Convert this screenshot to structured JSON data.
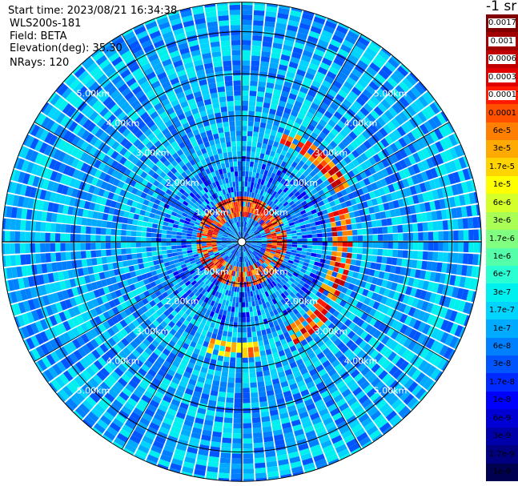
{
  "header": {
    "start_time": "Start time: 2023/08/21 16:34:38",
    "instrument": "WLS200s-181",
    "field": "Field: BETA",
    "elevation": "Elevation(deg): 35.30",
    "nrays": "NRays: 120"
  },
  "colorbar": {
    "units_label": "-1 sr",
    "cells": [
      {
        "label": "0.0017",
        "color": "#800000",
        "boxed": true
      },
      {
        "label": "0.001",
        "color": "#a00000",
        "boxed": true
      },
      {
        "label": "0.0006",
        "color": "#c00000",
        "boxed": true
      },
      {
        "label": "0.0003",
        "color": "#e00000",
        "boxed": true
      },
      {
        "label": "0.00017",
        "color": "#ff1a00",
        "boxed": true
      },
      {
        "label": "0.0001",
        "color": "#ff5000",
        "boxed": false
      },
      {
        "label": "6e-5",
        "color": "#ff8000",
        "boxed": false
      },
      {
        "label": "3e-5",
        "color": "#ffaa00",
        "boxed": false
      },
      {
        "label": "1.7e-5",
        "color": "#ffd400",
        "boxed": false
      },
      {
        "label": "1e-5",
        "color": "#ffff00",
        "boxed": false
      },
      {
        "label": "6e-6",
        "color": "#d4ff2a",
        "boxed": false
      },
      {
        "label": "3e-6",
        "color": "#aaff55",
        "boxed": false
      },
      {
        "label": "1.7e-6",
        "color": "#80ff80",
        "boxed": false
      },
      {
        "label": "1e-6",
        "color": "#55ffaa",
        "boxed": false
      },
      {
        "label": "6e-7",
        "color": "#2affd4",
        "boxed": false
      },
      {
        "label": "3e-7",
        "color": "#00f0f0",
        "boxed": false
      },
      {
        "label": "1.7e-7",
        "color": "#00d4ff",
        "boxed": false
      },
      {
        "label": "1e-7",
        "color": "#00aaff",
        "boxed": false
      },
      {
        "label": "6e-8",
        "color": "#0080ff",
        "boxed": false
      },
      {
        "label": "3e-8",
        "color": "#0055ff",
        "boxed": false
      },
      {
        "label": "1.7e-8",
        "color": "#002aff",
        "boxed": false
      },
      {
        "label": "1e-8",
        "color": "#0000ff",
        "boxed": false
      },
      {
        "label": "6e-9",
        "color": "#0000d4",
        "boxed": false
      },
      {
        "label": "3e-9",
        "color": "#0000aa",
        "boxed": false
      },
      {
        "label": "1.7e-9",
        "color": "#000080",
        "boxed": false
      },
      {
        "label": "1e-9",
        "color": "#000050",
        "boxed": false
      }
    ]
  },
  "chart_data": {
    "type": "heatmap",
    "projection": "polar PPI",
    "range_rings_km": [
      1,
      2,
      3,
      4,
      5
    ],
    "range_ring_labels": [
      "1.00km",
      "2.00km",
      "3.00km",
      "4.00km",
      "5.00km"
    ],
    "max_range_km": 5.7,
    "nrays": 120,
    "colorbar_labels": [
      "0.0017",
      "0.001",
      "0.0006",
      "0.0003",
      "0.00017",
      "0.0001",
      "6e-5",
      "3e-5",
      "1.7e-5",
      "1e-5",
      "6e-6",
      "3e-6",
      "1.7e-6",
      "1e-6",
      "6e-7",
      "3e-7",
      "1.7e-7",
      "1e-7",
      "6e-8",
      "3e-8",
      "1.7e-8",
      "1e-8",
      "6e-9",
      "3e-9",
      "1.7e-9",
      "1e-9"
    ],
    "background_value_range": [
      "3e-8",
      "3e-7"
    ],
    "high_backscatter_features": [
      {
        "shape": "arc",
        "range_km": [
          2.5,
          2.9
        ],
        "azimuth_deg": [
          20,
          60
        ],
        "value_range": [
          "3e-5",
          "0.0006"
        ]
      },
      {
        "shape": "arc",
        "range_km": [
          2.2,
          2.6
        ],
        "azimuth_deg": [
          70,
          120
        ],
        "value_range": [
          "3e-5",
          "0.0006"
        ]
      },
      {
        "shape": "arc",
        "range_km": [
          2.3,
          2.7
        ],
        "azimuth_deg": [
          125,
          150
        ],
        "value_range": [
          "3e-5",
          "0.0006"
        ]
      },
      {
        "shape": "arc",
        "range_km": [
          2.4,
          2.8
        ],
        "azimuth_deg": [
          170,
          195
        ],
        "value_range": [
          "1e-5",
          "0.0001"
        ]
      },
      {
        "shape": "arc",
        "range_km": [
          0.55,
          1.1
        ],
        "azimuth_deg": [
          0,
          360
        ],
        "value_range": [
          "3e-5",
          "0.0006"
        ]
      }
    ]
  }
}
